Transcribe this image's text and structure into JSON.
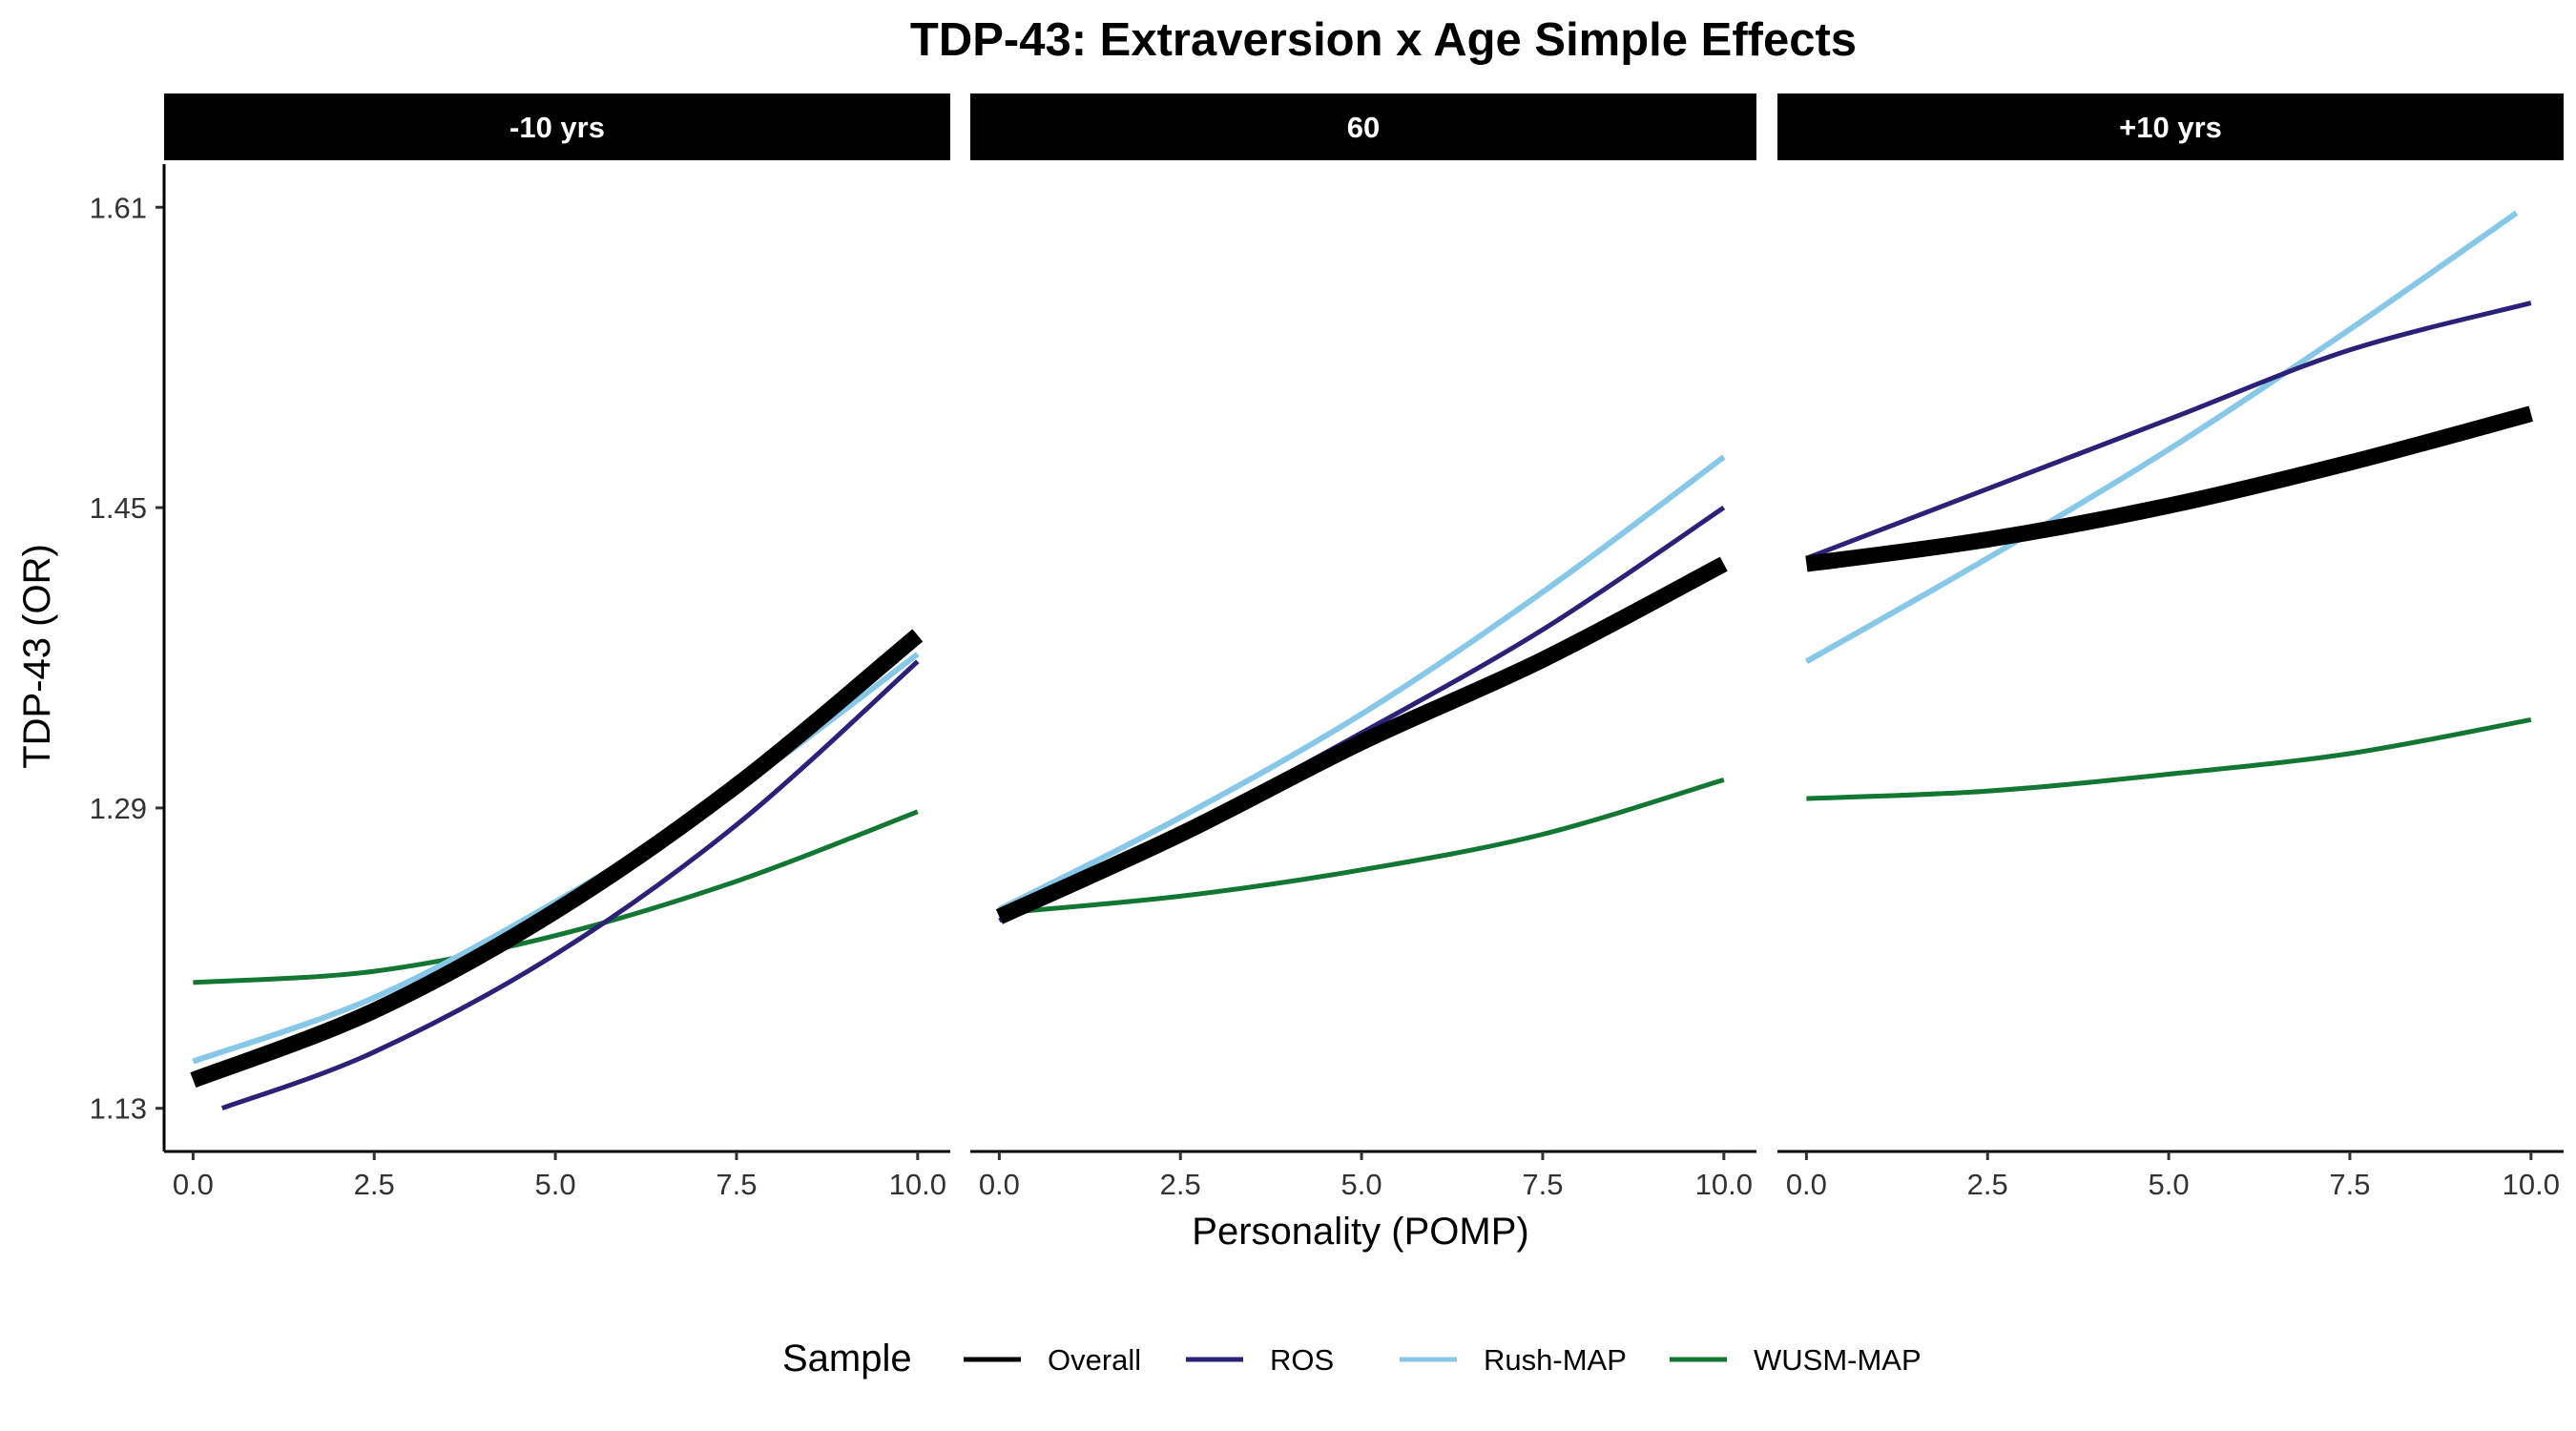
{
  "chart_data": {
    "type": "line",
    "title": "TDP-43: Extraversion x Age Simple Effects",
    "xlabel": "Personality (POMP)",
    "ylabel": "TDP-43 (OR)",
    "xlim": [
      -0.4,
      10.45
    ],
    "ylim": [
      1.107,
      1.633
    ],
    "x_ticks": [
      0.0,
      2.5,
      5.0,
      7.5,
      10.0
    ],
    "x_tick_labels": [
      "0.0",
      "2.5",
      "5.0",
      "7.5",
      "10.0"
    ],
    "y_ticks": [
      1.13,
      1.29,
      1.45,
      1.61
    ],
    "y_tick_labels": [
      "1.13",
      "1.29",
      "1.45",
      "1.61"
    ],
    "grid": false,
    "legend": {
      "title": "Sample",
      "position": "bottom",
      "entries": [
        "Overall",
        "ROS",
        "Rush-MAP",
        "WUSM-MAP"
      ]
    },
    "colors": {
      "Overall": "#000000",
      "ROS": "#2b2179",
      "Rush-MAP": "#87c8e8",
      "WUSM-MAP": "#117733"
    },
    "panels": [
      {
        "label": "-10 yrs",
        "series": [
          {
            "name": "Overall",
            "x": [
              0,
              2.5,
              5,
              7.5,
              10
            ],
            "y": [
              1.145,
              1.182,
              1.235,
              1.302,
              1.382
            ]
          },
          {
            "name": "ROS",
            "x": [
              0.4,
              2.5,
              5,
              7.5,
              10
            ],
            "y": [
              1.13,
              1.16,
              1.212,
              1.281,
              1.368
            ]
          },
          {
            "name": "Rush-MAP",
            "x": [
              0,
              2.5,
              5,
              7.5,
              10
            ],
            "y": [
              1.155,
              1.189,
              1.24,
              1.3,
              1.372
            ]
          },
          {
            "name": "WUSM-MAP",
            "x": [
              0,
              2.5,
              5,
              7.5,
              10
            ],
            "y": [
              1.197,
              1.203,
              1.222,
              1.251,
              1.288
            ]
          }
        ]
      },
      {
        "label": "60",
        "series": [
          {
            "name": "Overall",
            "x": [
              0,
              2.5,
              5,
              7.5,
              10
            ],
            "y": [
              1.232,
              1.276,
              1.325,
              1.369,
              1.42
            ]
          },
          {
            "name": "ROS",
            "x": [
              0,
              2.5,
              5,
              7.5,
              10
            ],
            "y": [
              1.23,
              1.278,
              1.33,
              1.385,
              1.45
            ]
          },
          {
            "name": "Rush-MAP",
            "x": [
              0,
              2.5,
              5,
              7.5,
              10
            ],
            "y": [
              1.236,
              1.285,
              1.34,
              1.405,
              1.477
            ]
          },
          {
            "name": "WUSM-MAP",
            "x": [
              0,
              2.5,
              5,
              7.5,
              10
            ],
            "y": [
              1.234,
              1.243,
              1.257,
              1.276,
              1.305
            ]
          }
        ]
      },
      {
        "label": "+10 yrs",
        "series": [
          {
            "name": "Overall",
            "x": [
              0,
              2.5,
              5,
              7.5,
              10
            ],
            "y": [
              1.42,
              1.433,
              1.451,
              1.474,
              1.5
            ]
          },
          {
            "name": "ROS",
            "x": [
              0,
              2.5,
              5,
              7.5,
              10
            ],
            "y": [
              1.423,
              1.46,
              1.497,
              1.534,
              1.559
            ]
          },
          {
            "name": "Rush-MAP",
            "x": [
              0,
              2.5,
              5,
              7.5,
              9.8
            ],
            "y": [
              1.368,
              1.423,
              1.481,
              1.545,
              1.607
            ]
          },
          {
            "name": "WUSM-MAP",
            "x": [
              0,
              2.5,
              5,
              7.5,
              10
            ],
            "y": [
              1.295,
              1.299,
              1.308,
              1.319,
              1.337
            ]
          }
        ]
      }
    ]
  }
}
